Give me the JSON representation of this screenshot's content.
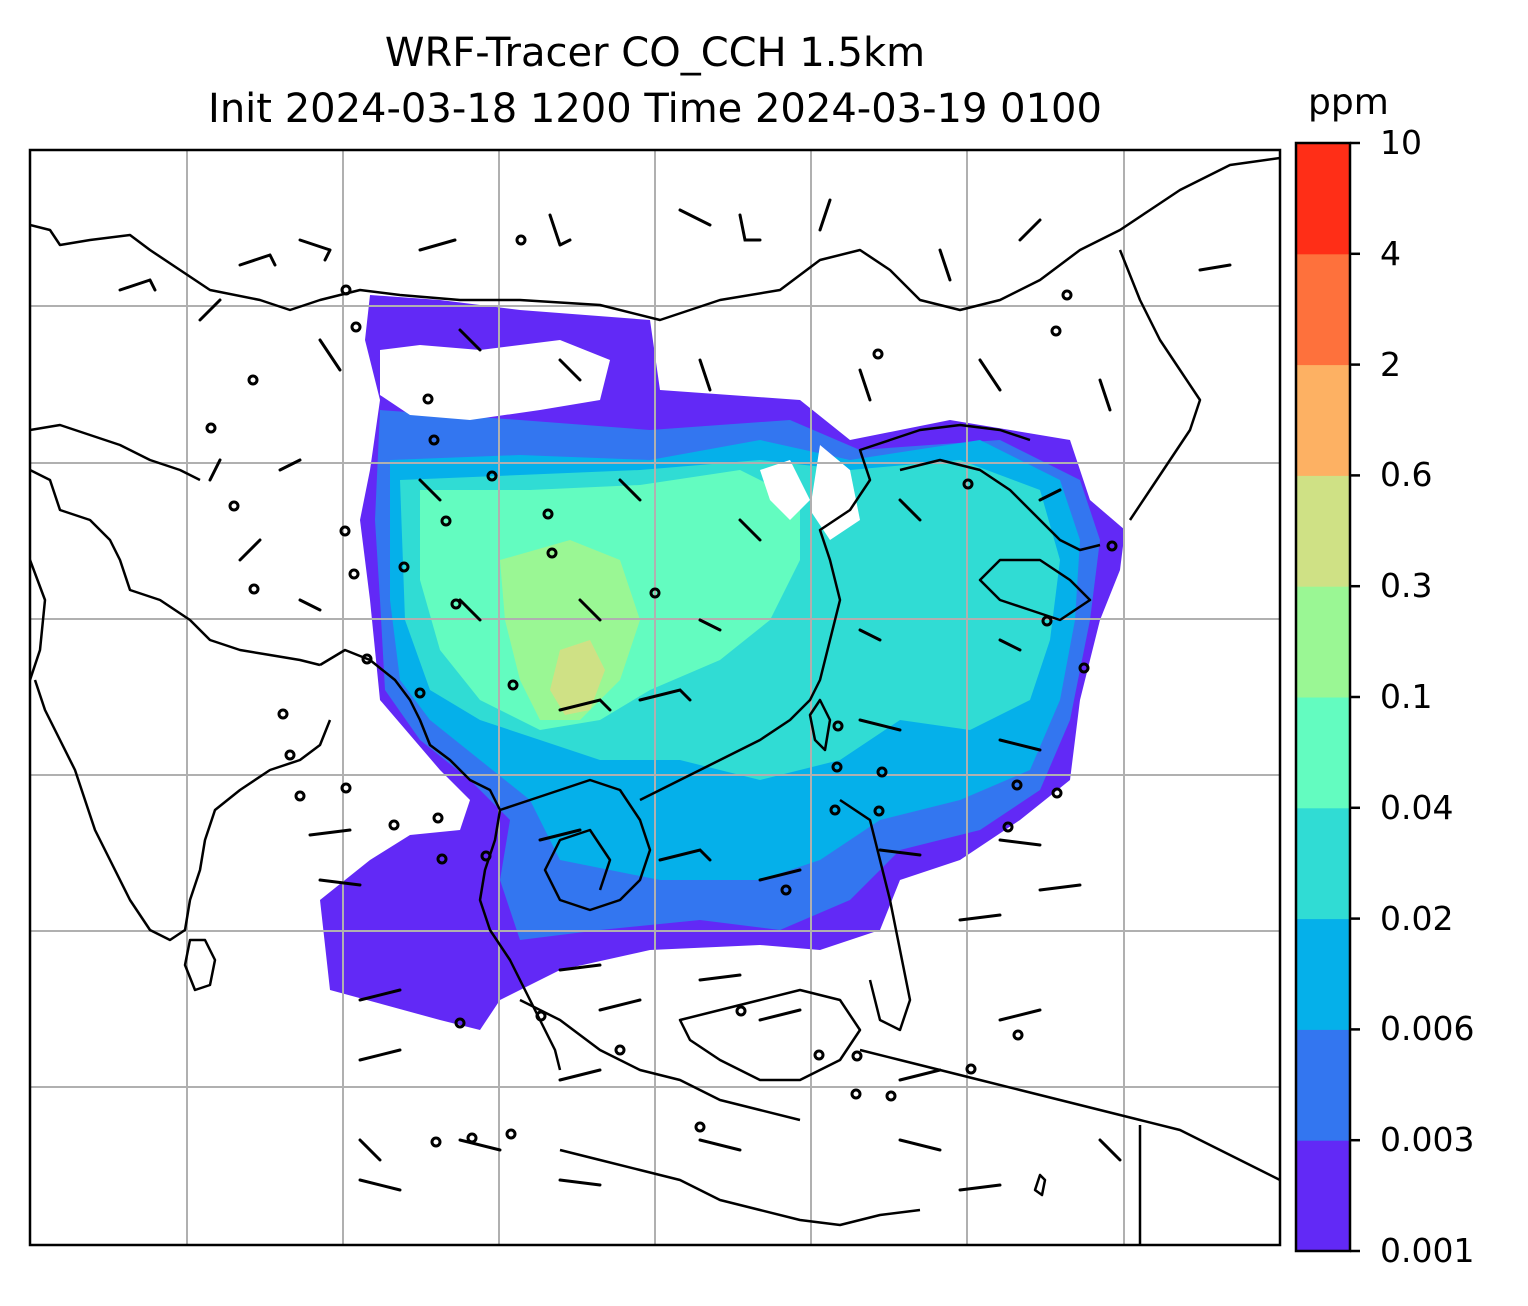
{
  "title_line1": "WRF-Tracer CO_CCH 1.5km",
  "title_line2": "Init 2024-03-18 1200 Time 2024-03-19 0100",
  "colorbar": {
    "unit": "ppm",
    "ticks": [
      "0.001",
      "0.003",
      "0.006",
      "0.02",
      "0.04",
      "0.1",
      "0.3",
      "0.6",
      "2",
      "4",
      "10"
    ],
    "colors": [
      "#6229f6",
      "#3376f0",
      "#05b0ea",
      "#30dcd4",
      "#63fcc0",
      "#9af794",
      "#cfe185",
      "#fdb163",
      "#fe713c",
      "#ff2e17"
    ]
  },
  "map": {
    "projection": "lat-lon",
    "gridlines": true,
    "grid_color": "#b0b0b0",
    "coastline_color": "#000000",
    "wind_barbs": true
  }
}
